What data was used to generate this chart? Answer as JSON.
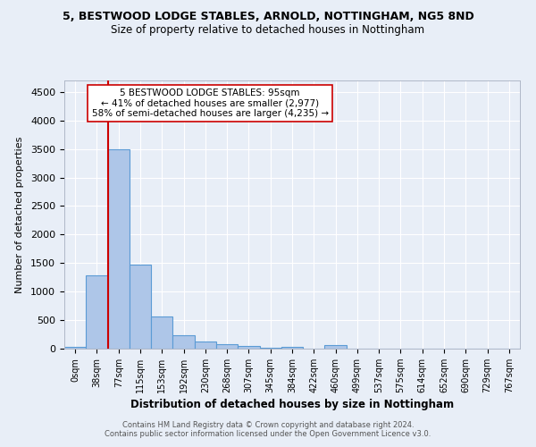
{
  "title": "5, BESTWOOD LODGE STABLES, ARNOLD, NOTTINGHAM, NG5 8ND",
  "subtitle": "Size of property relative to detached houses in Nottingham",
  "xlabel": "Distribution of detached houses by size in Nottingham",
  "ylabel": "Number of detached properties",
  "bar_labels": [
    "0sqm",
    "38sqm",
    "77sqm",
    "115sqm",
    "153sqm",
    "192sqm",
    "230sqm",
    "268sqm",
    "307sqm",
    "345sqm",
    "384sqm",
    "422sqm",
    "460sqm",
    "499sqm",
    "537sqm",
    "575sqm",
    "614sqm",
    "652sqm",
    "690sqm",
    "729sqm",
    "767sqm"
  ],
  "bar_values": [
    30,
    1280,
    3500,
    1480,
    570,
    240,
    120,
    80,
    40,
    20,
    30,
    5,
    60,
    0,
    0,
    0,
    0,
    0,
    0,
    0,
    0
  ],
  "bar_color": "#aec6e8",
  "bar_edge_color": "#5b9bd5",
  "vline_color": "#cc0000",
  "vline_x_index": 2,
  "annotation_text": "5 BESTWOOD LODGE STABLES: 95sqm\n← 41% of detached houses are smaller (2,977)\n58% of semi-detached houses are larger (4,235) →",
  "annotation_box_color": "white",
  "annotation_box_edge": "#cc0000",
  "ylim": [
    0,
    4700
  ],
  "yticks": [
    0,
    500,
    1000,
    1500,
    2000,
    2500,
    3000,
    3500,
    4000,
    4500
  ],
  "background_color": "#e8eef7",
  "grid_color": "#ffffff",
  "footer_line1": "Contains HM Land Registry data © Crown copyright and database right 2024.",
  "footer_line2": "Contains public sector information licensed under the Open Government Licence v3.0."
}
